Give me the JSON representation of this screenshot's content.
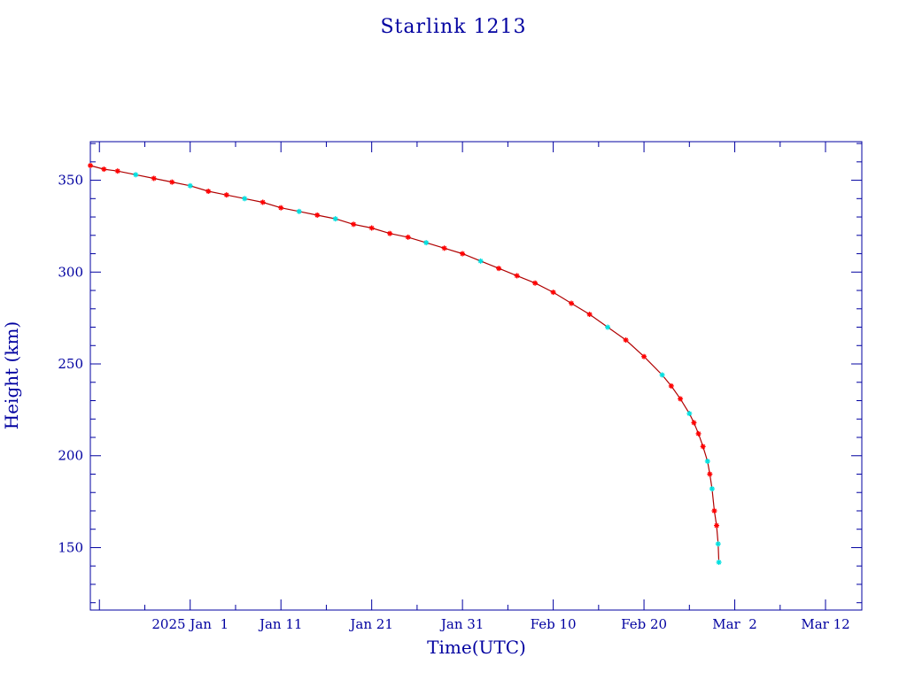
{
  "chart_data": {
    "type": "line",
    "title": "Starlink 1213",
    "xlabel": "Time(UTC)",
    "ylabel": "Height (km)",
    "x_axis_type": "date",
    "xlim": [
      "2024-12-21",
      "2025-03-16"
    ],
    "ylim": [
      116,
      371
    ],
    "x_tick_labels": [
      {
        "date": "2025-01-01",
        "label": "2025 Jan  1"
      },
      {
        "date": "2025-01-11",
        "label": "Jan 11"
      },
      {
        "date": "2025-01-21",
        "label": "Jan 21"
      },
      {
        "date": "2025-01-31",
        "label": "Jan 31"
      },
      {
        "date": "2025-02-10",
        "label": "Feb 10"
      },
      {
        "date": "2025-02-20",
        "label": "Feb 20"
      },
      {
        "date": "2025-03-02",
        "label": "Mar  2"
      },
      {
        "date": "2025-03-12",
        "label": "Mar 12"
      }
    ],
    "y_ticks": [
      150,
      200,
      250,
      300,
      350
    ],
    "grid": false,
    "colors": {
      "axes": "#0000a0",
      "line": "#b00000",
      "points_main": "#ff0000",
      "points_alt": "#00e0e0"
    },
    "series": [
      {
        "points": [
          {
            "x": "2024-12-21T00:00",
            "y": 358
          },
          {
            "x": "2024-12-22T12:00",
            "y": 356
          },
          {
            "x": "2024-12-24T00:00",
            "y": 355
          },
          {
            "x": "2024-12-26T00:00",
            "y": 353,
            "alt": true
          },
          {
            "x": "2024-12-28T00:00",
            "y": 351
          },
          {
            "x": "2024-12-30T00:00",
            "y": 349
          },
          {
            "x": "2025-01-01T00:00",
            "y": 347,
            "alt": true
          },
          {
            "x": "2025-01-03T00:00",
            "y": 344
          },
          {
            "x": "2025-01-05T00:00",
            "y": 342
          },
          {
            "x": "2025-01-07T00:00",
            "y": 340,
            "alt": true
          },
          {
            "x": "2025-01-09T00:00",
            "y": 338
          },
          {
            "x": "2025-01-11T00:00",
            "y": 335
          },
          {
            "x": "2025-01-13T00:00",
            "y": 333,
            "alt": true
          },
          {
            "x": "2025-01-15T00:00",
            "y": 331
          },
          {
            "x": "2025-01-17T00:00",
            "y": 329,
            "alt": true
          },
          {
            "x": "2025-01-19T00:00",
            "y": 326
          },
          {
            "x": "2025-01-21T00:00",
            "y": 324
          },
          {
            "x": "2025-01-23T00:00",
            "y": 321
          },
          {
            "x": "2025-01-25T00:00",
            "y": 319
          },
          {
            "x": "2025-01-27T00:00",
            "y": 316,
            "alt": true
          },
          {
            "x": "2025-01-29T00:00",
            "y": 313
          },
          {
            "x": "2025-01-31T00:00",
            "y": 310
          },
          {
            "x": "2025-02-02T00:00",
            "y": 306,
            "alt": true
          },
          {
            "x": "2025-02-04T00:00",
            "y": 302
          },
          {
            "x": "2025-02-06T00:00",
            "y": 298
          },
          {
            "x": "2025-02-08T00:00",
            "y": 294
          },
          {
            "x": "2025-02-10T00:00",
            "y": 289
          },
          {
            "x": "2025-02-12T00:00",
            "y": 283
          },
          {
            "x": "2025-02-14T00:00",
            "y": 277
          },
          {
            "x": "2025-02-16T00:00",
            "y": 270,
            "alt": true
          },
          {
            "x": "2025-02-18T00:00",
            "y": 263
          },
          {
            "x": "2025-02-20T00:00",
            "y": 254
          },
          {
            "x": "2025-02-22T00:00",
            "y": 244,
            "alt": true
          },
          {
            "x": "2025-02-23T00:00",
            "y": 238
          },
          {
            "x": "2025-02-24T00:00",
            "y": 231
          },
          {
            "x": "2025-02-25T00:00",
            "y": 223,
            "alt": true
          },
          {
            "x": "2025-02-25T12:00",
            "y": 218
          },
          {
            "x": "2025-02-26T00:00",
            "y": 212
          },
          {
            "x": "2025-02-26T12:00",
            "y": 205
          },
          {
            "x": "2025-02-27T00:00",
            "y": 197,
            "alt": true
          },
          {
            "x": "2025-02-27T06:00",
            "y": 190
          },
          {
            "x": "2025-02-27T12:00",
            "y": 182,
            "alt": true
          },
          {
            "x": "2025-02-27T18:00",
            "y": 170
          },
          {
            "x": "2025-02-28T00:00",
            "y": 162
          },
          {
            "x": "2025-02-28T04:00",
            "y": 152,
            "alt": true
          },
          {
            "x": "2025-02-28T06:00",
            "y": 142,
            "alt": true
          }
        ]
      }
    ]
  }
}
